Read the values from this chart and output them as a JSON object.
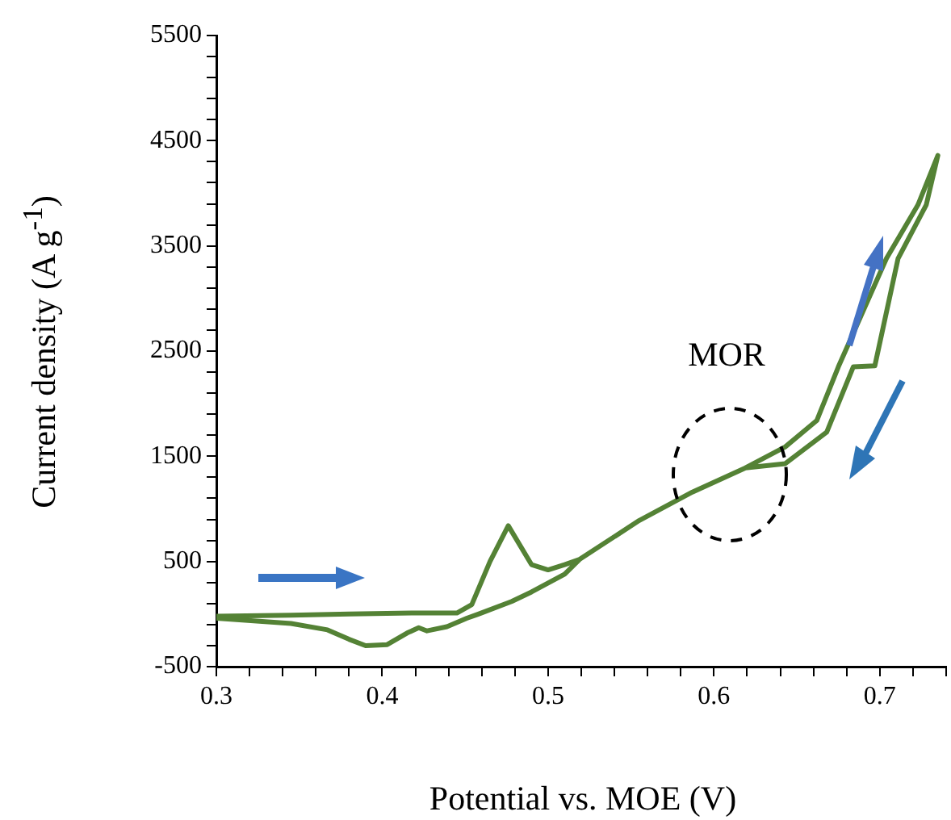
{
  "chart_data": {
    "type": "line",
    "xlabel": "Potential vs. MOE (V)",
    "ylabel": "Current density (A g$^{-1}$)",
    "annotations": [
      "MOR"
    ],
    "series": [
      {
        "color": "#548235",
        "x": [
          0.3,
          0.345,
          0.38,
          0.419,
          0.445,
          0.454,
          0.465,
          0.476,
          0.49,
          0.5,
          0.51,
          0.519,
          0.555,
          0.587,
          0.619,
          0.643,
          0.668,
          0.684,
          0.697,
          0.711,
          0.728,
          0.735,
          0.723,
          0.704,
          0.675,
          0.662,
          0.643,
          0.619,
          0.587,
          0.555,
          0.519,
          0.51,
          0.49,
          0.478,
          0.458,
          0.451,
          0.439,
          0.427,
          0.422,
          0.415,
          0.403,
          0.39,
          0.38,
          0.367,
          0.345,
          0.3
        ],
        "values": [
          -20,
          -10,
          0,
          10,
          10,
          90,
          500,
          840,
          470,
          420,
          470,
          520,
          890,
          1160,
          1390,
          1430,
          1730,
          2350,
          2360,
          3380,
          3890,
          4360,
          3890,
          3380,
          2350,
          1840,
          1590,
          1390,
          1160,
          890,
          520,
          380,
          210,
          120,
          0,
          -40,
          -120,
          -160,
          -130,
          -180,
          -290,
          -300,
          -240,
          -150,
          -90,
          -40
        ]
      }
    ],
    "xlim": [
      0.3,
      0.74
    ],
    "xticks": [
      0.3,
      {
        "value": 0.32,
        "label": null
      },
      {
        "value": 0.34,
        "label": null
      },
      {
        "value": 0.36,
        "label": null
      },
      {
        "value": 0.38,
        "label": null
      },
      0.4,
      {
        "value": 0.42,
        "label": null
      },
      {
        "value": 0.44,
        "label": null
      },
      {
        "value": 0.46,
        "label": null
      },
      {
        "value": 0.48,
        "label": null
      },
      0.5,
      {
        "value": 0.52,
        "label": null
      },
      {
        "value": 0.54,
        "label": null
      },
      {
        "value": 0.56,
        "label": null
      },
      {
        "value": 0.58,
        "label": null
      },
      0.6,
      {
        "value": 0.62,
        "label": null
      },
      {
        "value": 0.64,
        "label": null
      },
      {
        "value": 0.66,
        "label": null
      },
      {
        "value": 0.68,
        "label": null
      },
      0.7,
      {
        "value": 0.72,
        "label": null
      },
      {
        "value": 0.74,
        "label": null
      }
    ],
    "ylim": [
      -500,
      5500
    ],
    "yticks": [
      -500,
      {
        "value": -300,
        "label": null
      },
      {
        "value": -100,
        "label": null
      },
      {
        "value": 100,
        "label": null
      },
      {
        "value": 300,
        "label": null
      },
      500,
      {
        "value": 700,
        "label": null
      },
      {
        "value": 900,
        "label": null
      },
      {
        "value": 1100,
        "label": null
      },
      {
        "value": 1300,
        "label": null
      },
      1500,
      {
        "value": 1700,
        "label": null
      },
      {
        "value": 1900,
        "label": null
      },
      {
        "value": 2100,
        "label": null
      },
      {
        "value": 2300,
        "label": null
      },
      2500,
      {
        "value": 2700,
        "label": null
      },
      {
        "value": 2900,
        "label": null
      },
      {
        "value": 3100,
        "label": null
      },
      {
        "value": 3300,
        "label": null
      },
      3500,
      {
        "value": 3700,
        "label": null
      },
      {
        "value": 3900,
        "label": null
      },
      {
        "value": 4100,
        "label": null
      },
      {
        "value": 4300,
        "label": null
      },
      4500,
      {
        "value": 4700,
        "label": null
      },
      {
        "value": 4900,
        "label": null
      },
      {
        "value": 5100,
        "label": null
      },
      {
        "value": 5300,
        "label": null
      },
      5500
    ],
    "grid": false,
    "legend": false,
    "marker": "none",
    "line_style": "solid"
  }
}
